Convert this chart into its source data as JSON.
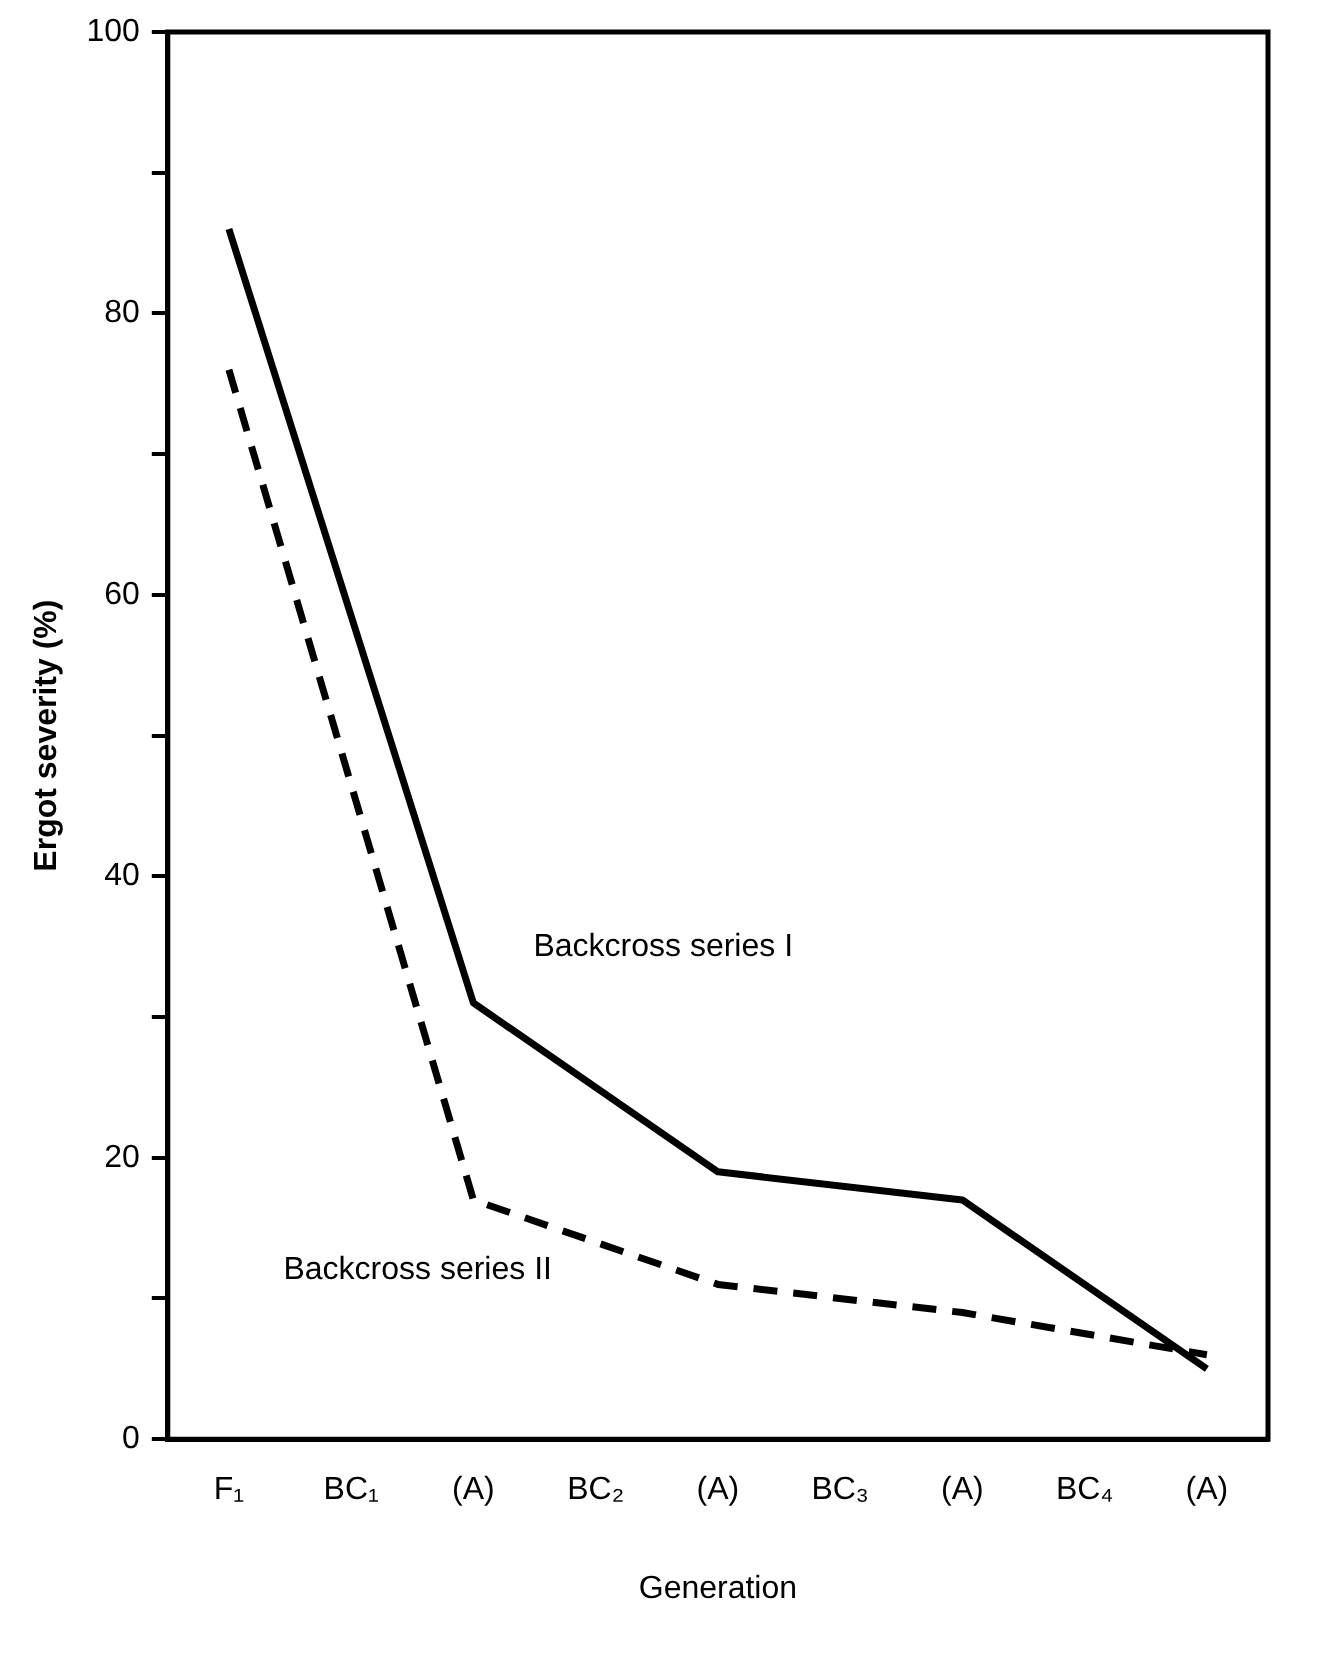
{
  "chart_data": {
    "type": "line",
    "xlabel": "Generation",
    "ylabel": "Ergot severity (%)",
    "categories": [
      "F₁",
      "BC₁",
      "(A)",
      "BC₂",
      "(A)",
      "BC₃",
      "(A)",
      "BC₄",
      "(A)"
    ],
    "series": [
      {
        "name": "Backcross series I",
        "color": "#000000",
        "line_style": "solid",
        "values": [
          86,
          null,
          31,
          null,
          19,
          null,
          17,
          null,
          5
        ]
      },
      {
        "name": "Backcross series II",
        "color": "#000000",
        "line_style": "dashed",
        "values": [
          76,
          null,
          17,
          null,
          11,
          null,
          9,
          null,
          6
        ]
      }
    ],
    "ylim": [
      0,
      100
    ],
    "yticks": [
      0,
      {
        "value": 10,
        "label": null
      },
      20,
      {
        "value": 30,
        "label": null
      },
      40,
      {
        "value": 50,
        "label": null
      },
      60,
      {
        "value": 70,
        "label": null
      },
      80,
      {
        "value": 90,
        "label": null
      },
      100
    ],
    "grid": false,
    "legend": false,
    "marker": "none"
  }
}
